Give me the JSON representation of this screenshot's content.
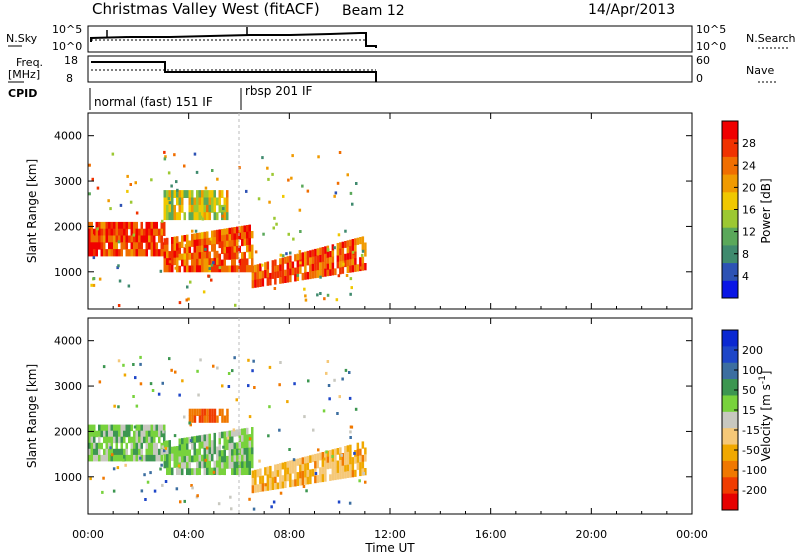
{
  "header": {
    "station": "Christmas Valley West (fitACF)",
    "beam": "Beam 12",
    "date": "14/Apr/2013"
  },
  "top_panels": {
    "nsky_label": "N.Sky",
    "nsky_ticks": [
      "10^5",
      "10^0"
    ],
    "nsearch_label": "N.Search",
    "freq_label": "Freq.",
    "freq_unit": "[MHz]",
    "freq_ticks": [
      "18",
      "8"
    ],
    "nave_label": "Nave",
    "nave_ticks": [
      "60",
      "0"
    ],
    "cpid_label": "CPID",
    "cpid_segments": [
      {
        "label": "normal (fast) 151 IF",
        "start": "00:00",
        "end": "06:00"
      },
      {
        "label": "rbsp 201 IF",
        "start": "06:00",
        "end": "11:00"
      }
    ]
  },
  "colors": {
    "power_scale": [
      "#0a16e6",
      "#2d52b4",
      "#3f8a6e",
      "#5aa85a",
      "#9cc832",
      "#f0c800",
      "#f09a00",
      "#f06e00",
      "#f03200",
      "#f00000"
    ],
    "velocity_scale": [
      "#e60000",
      "#f03c00",
      "#f07800",
      "#f0a800",
      "#f5c878",
      "#c8c8c0",
      "#78d23c",
      "#3c9650",
      "#3c6ea0",
      "#1e46c8",
      "#0a28d2"
    ]
  },
  "chart_data": [
    {
      "type": "heatmap",
      "panel": "power",
      "ylabel": "Slant Range [km]",
      "yticks": [
        "1000",
        "2000",
        "3000",
        "4000"
      ],
      "ylim": [
        180,
        4500
      ],
      "xlim": [
        "00:00",
        "24:00"
      ],
      "colorbar_label": "Power [dB]",
      "colorbar_ticks": [
        "4",
        "8",
        "12",
        "16",
        "20",
        "24",
        "28"
      ],
      "colorbar_range": [
        0,
        32
      ],
      "echo_regions": [
        {
          "start": "00:00",
          "end": "03:00",
          "range_low": 1350,
          "range_high": 2100,
          "power": 27
        },
        {
          "start": "03:00",
          "end": "06:30",
          "range_low": 1000,
          "range_high": 2050,
          "power": 25
        },
        {
          "start": "03:00",
          "end": "05:30",
          "range_low": 2150,
          "range_high": 2800,
          "power": 17
        },
        {
          "start": "06:30",
          "end": "11:00",
          "range_low": 650,
          "range_high": 1800,
          "power": 26
        }
      ]
    },
    {
      "type": "heatmap",
      "panel": "velocity",
      "xlabel": "Time UT",
      "ylabel": "Slant Range [km]",
      "yticks": [
        "1000",
        "2000",
        "3000",
        "4000"
      ],
      "ylim": [
        180,
        4500
      ],
      "xticks": [
        "00:00",
        "04:00",
        "08:00",
        "12:00",
        "16:00",
        "20:00",
        "00:00"
      ],
      "xlim": [
        "00:00",
        "24:00"
      ],
      "colorbar_label": "Velocity [m s^-1]",
      "colorbar_ticks": [
        "200",
        "100",
        "50",
        "15",
        "-15",
        "-50",
        "-100",
        "-200"
      ],
      "echo_regions": [
        {
          "start": "00:00",
          "end": "03:00",
          "range_low": 1350,
          "range_high": 2150,
          "velocity": 0
        },
        {
          "start": "03:00",
          "end": "06:30",
          "range_low": 1050,
          "range_high": 2100,
          "velocity": 0
        },
        {
          "start": "04:00",
          "end": "05:30",
          "range_low": 2200,
          "range_high": 2500,
          "velocity": -150
        },
        {
          "start": "06:30",
          "end": "11:00",
          "range_low": 650,
          "range_high": 1800,
          "velocity": -80
        }
      ]
    }
  ]
}
